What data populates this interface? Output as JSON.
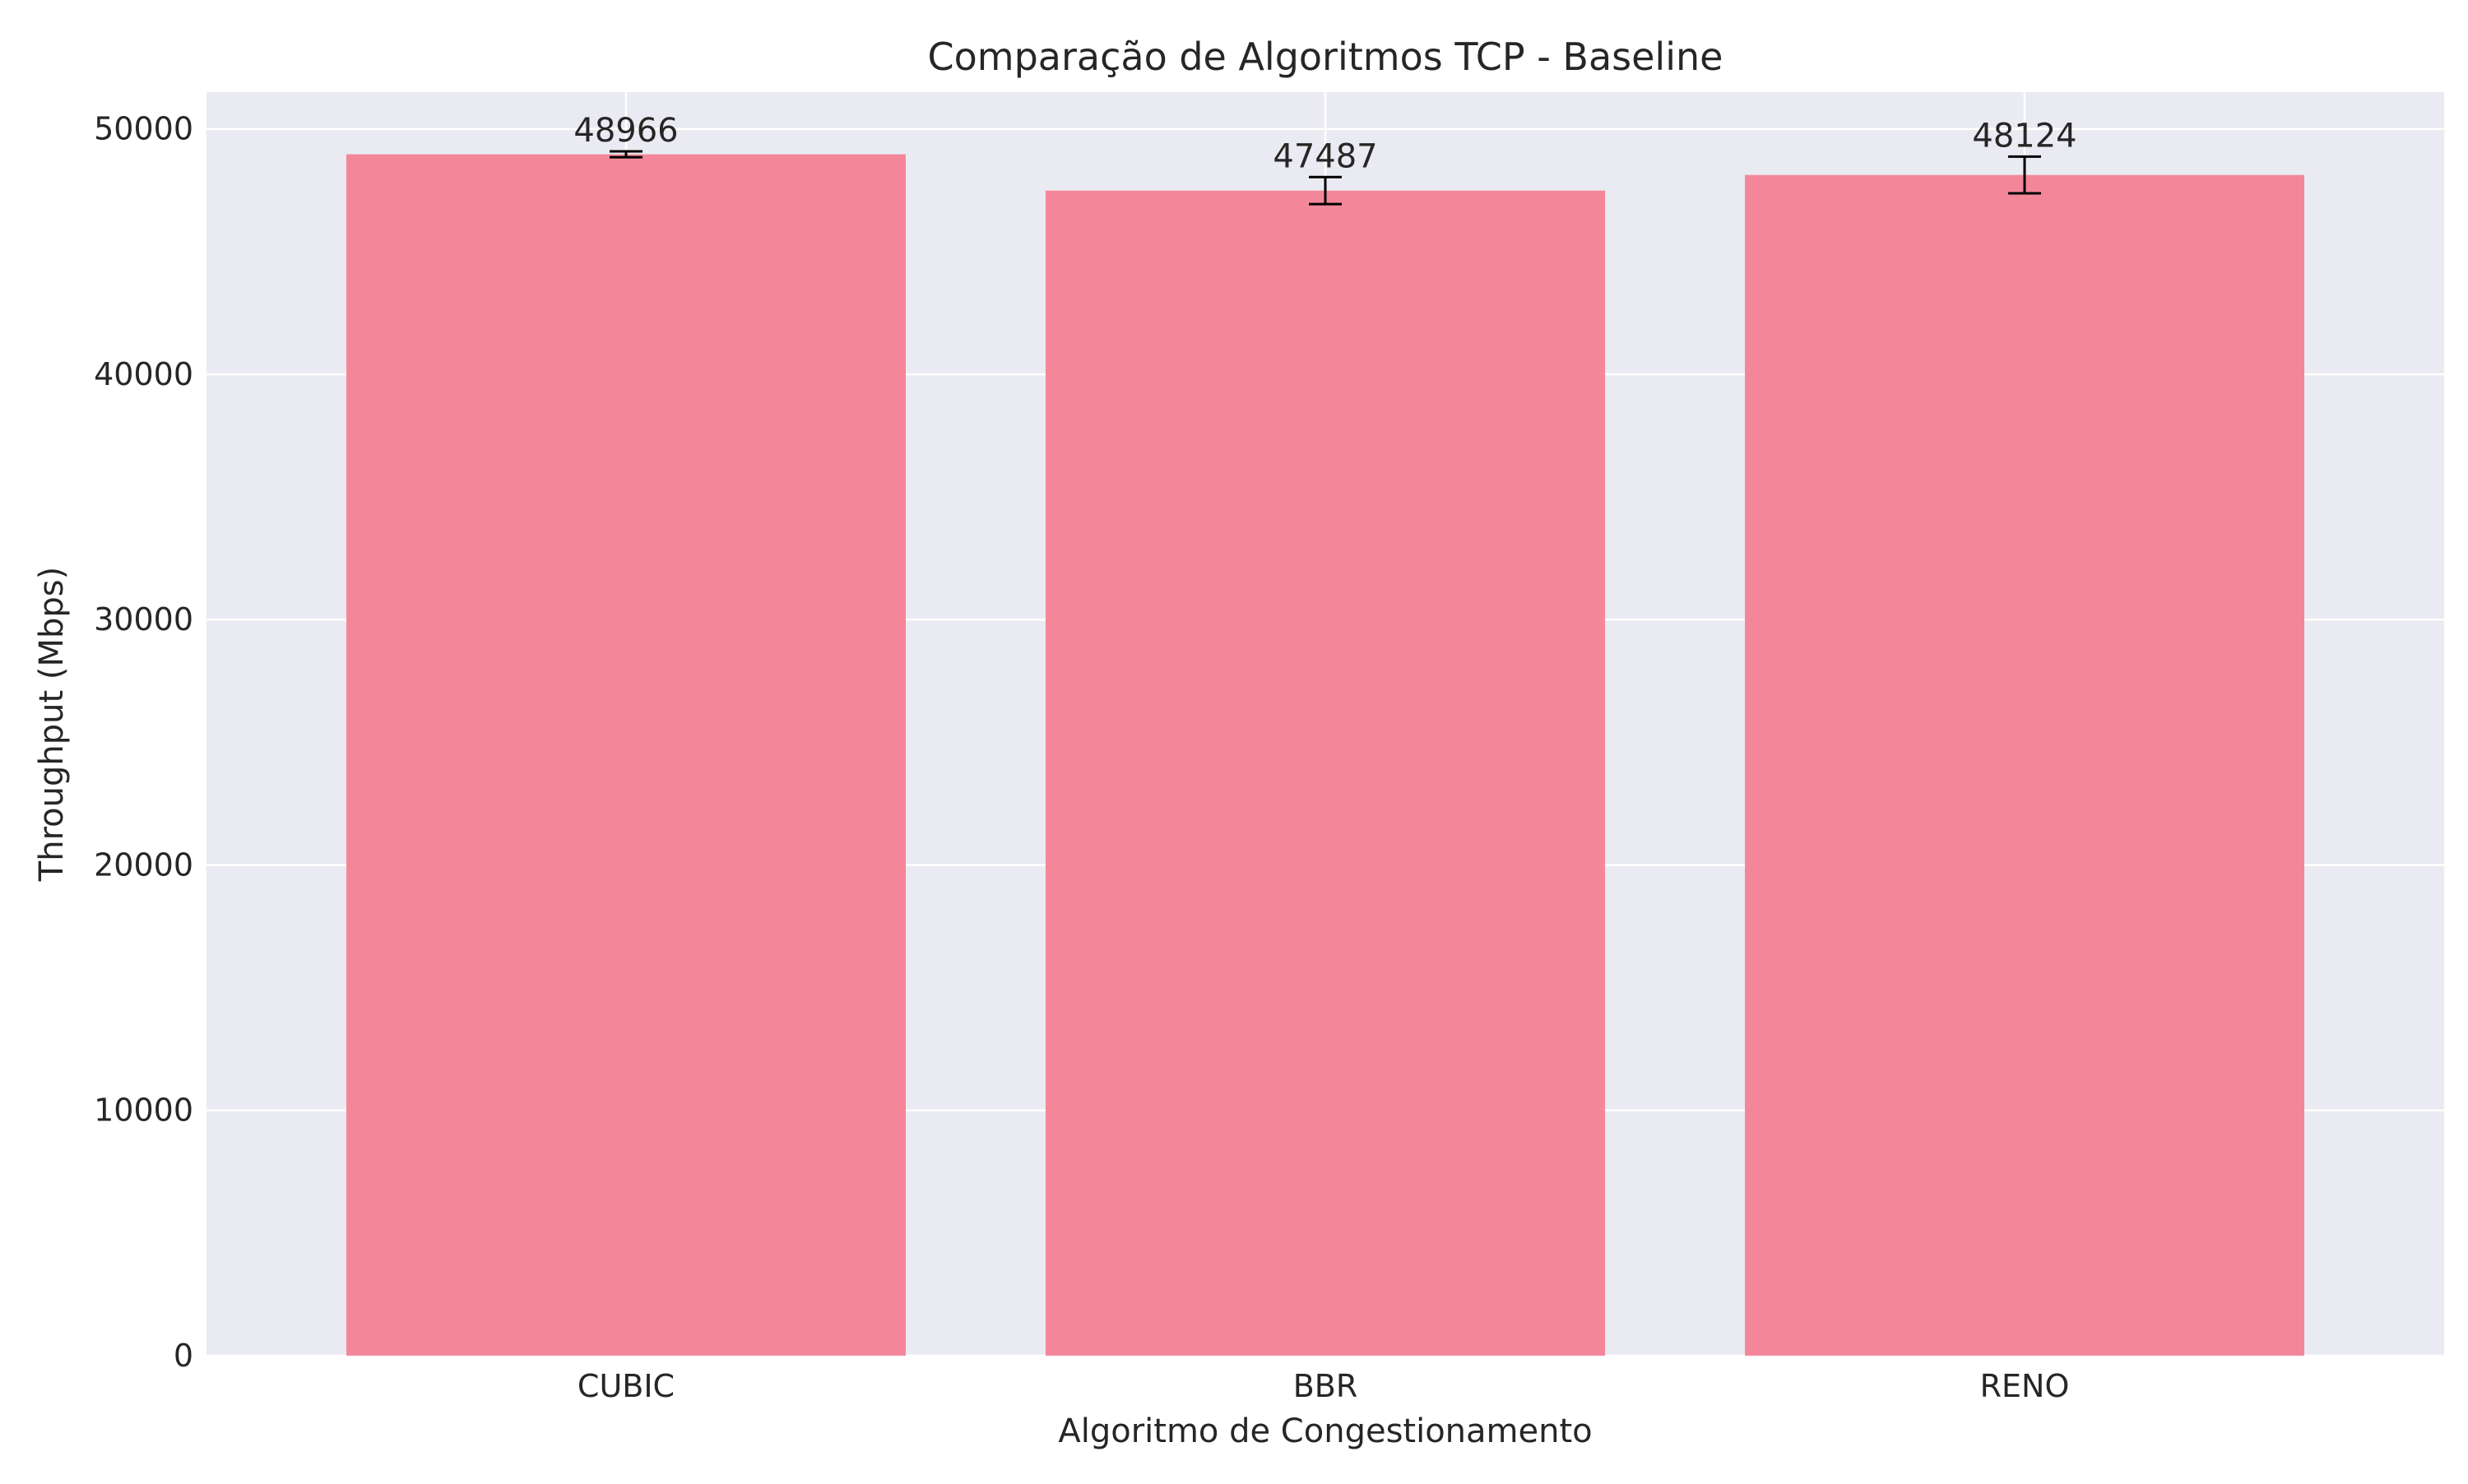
{
  "chart_data": {
    "type": "bar",
    "title": "Comparação de Algoritmos TCP - Baseline",
    "xlabel": "Algoritmo de Congestionamento",
    "ylabel": "Throughput (Mbps)",
    "categories": [
      "CUBIC",
      "BBR",
      "RENO"
    ],
    "values": [
      48966,
      47487,
      48124
    ],
    "error": [
      120,
      550,
      750
    ],
    "value_labels": [
      "48966",
      "47487",
      "48124"
    ],
    "ylim": [
      0,
      51500
    ],
    "yticks": [
      0,
      10000,
      20000,
      30000,
      40000,
      50000
    ],
    "ytick_labels": [
      "0",
      "10000",
      "20000",
      "30000",
      "40000",
      "50000"
    ],
    "grid": true,
    "colors": {
      "bar": "#f38799",
      "plot_background": "#eaeaf2",
      "grid": "#ffffff",
      "error_bar": "#000000"
    }
  }
}
